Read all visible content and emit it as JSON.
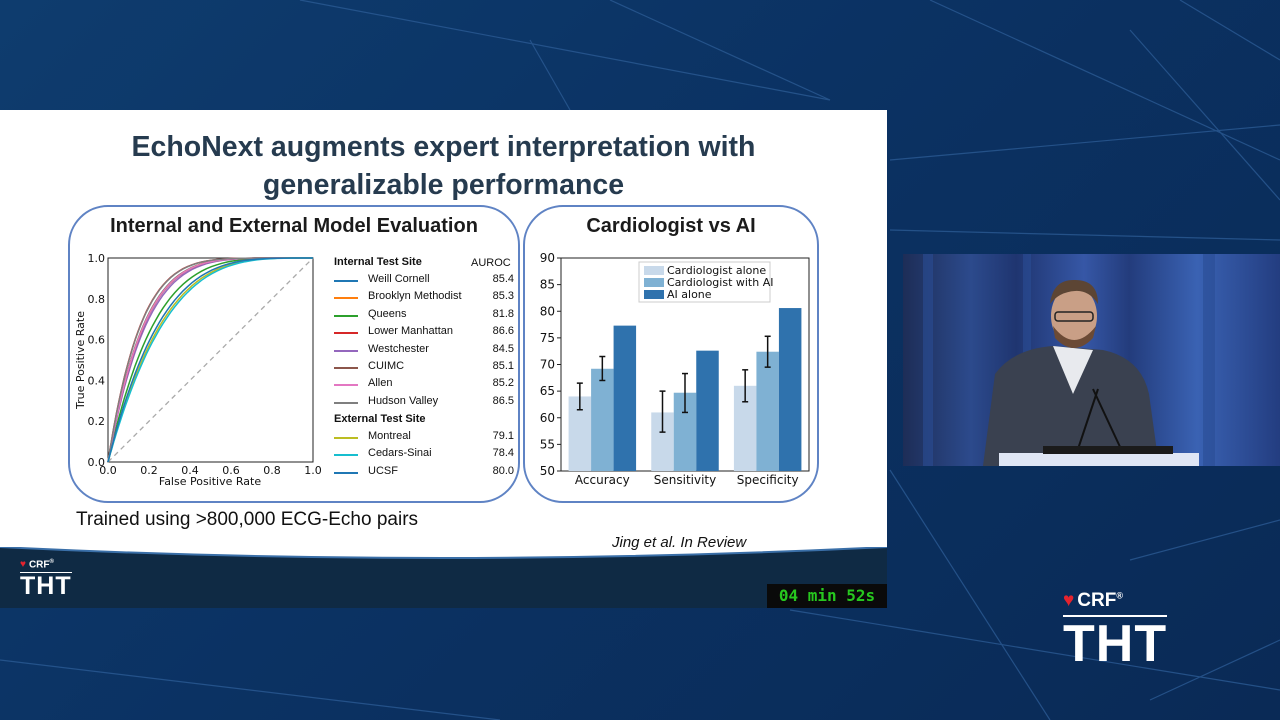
{
  "slide": {
    "title_line1": "EchoNext augments expert interpretation with",
    "title_line2": "generalizable performance",
    "caption": "Trained using >800,000 ECG-Echo pairs",
    "citation": "Jing et al. In Review"
  },
  "roc_panel": {
    "title": "Internal and External Model Evaluation",
    "xlabel": "False Positive Rate",
    "ylabel": "True Positive Rate",
    "ticks": [
      "0.0",
      "0.2",
      "0.4",
      "0.6",
      "0.8",
      "1.0"
    ],
    "internal_heading": "Internal Test Site",
    "external_heading": "External Test Site",
    "auroc_heading": "AUROC",
    "internal": [
      {
        "name": "Weill Cornell",
        "auroc": "85.4",
        "color": "#1f77b4"
      },
      {
        "name": "Brooklyn Methodist",
        "auroc": "85.3",
        "color": "#ff7f0e"
      },
      {
        "name": "Queens",
        "auroc": "81.8",
        "color": "#2ca02c"
      },
      {
        "name": "Lower Manhattan",
        "auroc": "86.6",
        "color": "#d62728"
      },
      {
        "name": "Westchester",
        "auroc": "84.5",
        "color": "#9467bd"
      },
      {
        "name": "CUIMC",
        "auroc": "85.1",
        "color": "#8c564b"
      },
      {
        "name": "Allen",
        "auroc": "85.2",
        "color": "#e377c2"
      },
      {
        "name": "Hudson Valley",
        "auroc": "86.5",
        "color": "#7f7f7f"
      }
    ],
    "external": [
      {
        "name": "Montreal",
        "auroc": "79.1",
        "color": "#bcbd22"
      },
      {
        "name": "Cedars-Sinai",
        "auroc": "78.4",
        "color": "#17becf"
      },
      {
        "name": "UCSF",
        "auroc": "80.0",
        "color": "#1f77b4"
      }
    ]
  },
  "chart_data": [
    {
      "type": "line",
      "title": "Internal and External Model Evaluation",
      "xlabel": "False Positive Rate",
      "ylabel": "True Positive Rate",
      "xlim": [
        0,
        1
      ],
      "ylim": [
        0,
        1
      ],
      "legend": "right",
      "series": [
        {
          "name": "Weill Cornell",
          "auroc": 85.4
        },
        {
          "name": "Brooklyn Methodist",
          "auroc": 85.3
        },
        {
          "name": "Queens",
          "auroc": 81.8
        },
        {
          "name": "Lower Manhattan",
          "auroc": 86.6
        },
        {
          "name": "Westchester",
          "auroc": 84.5
        },
        {
          "name": "CUIMC",
          "auroc": 85.1
        },
        {
          "name": "Allen",
          "auroc": 85.2
        },
        {
          "name": "Hudson Valley",
          "auroc": 86.5
        },
        {
          "name": "Montreal",
          "auroc": 79.1
        },
        {
          "name": "Cedars-Sinai",
          "auroc": 78.4
        },
        {
          "name": "UCSF",
          "auroc": 80.0
        }
      ]
    },
    {
      "type": "bar",
      "title": "Cardiologist vs AI",
      "categories": [
        "Accuracy",
        "Sensitivity",
        "Specificity"
      ],
      "ylim": [
        50,
        90
      ],
      "yticks": [
        50,
        55,
        60,
        65,
        70,
        75,
        80,
        85,
        90
      ],
      "legend": "top-center",
      "series": [
        {
          "name": "Cardiologist alone",
          "color": "#c8d9ea",
          "values": [
            64,
            61,
            66
          ],
          "err_low": [
            61.5,
            57.3,
            63
          ],
          "err_high": [
            66.5,
            65,
            69
          ]
        },
        {
          "name": "Cardiologist with AI",
          "color": "#7fb1d3",
          "values": [
            69.2,
            64.7,
            72.4
          ],
          "err_low": [
            67,
            61,
            69.5
          ],
          "err_high": [
            71.5,
            68.3,
            75.3
          ]
        },
        {
          "name": "AI alone",
          "color": "#2f72ad",
          "values": [
            77.3,
            72.6,
            80.6
          ]
        }
      ]
    }
  ],
  "bar_panel": {
    "title": "Cardiologist vs AI"
  },
  "timer": "04 min 52s",
  "logo": {
    "crf": "CRF",
    "reg": "®",
    "tht": "THT"
  }
}
